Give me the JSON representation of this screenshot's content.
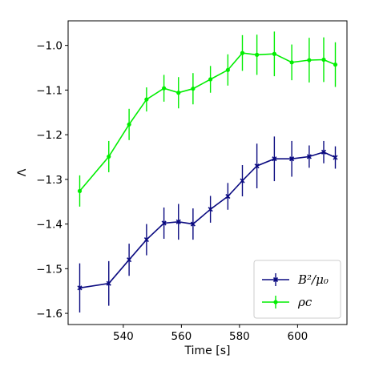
{
  "chart_data": {
    "type": "line",
    "xlabel": "Time [s]",
    "ylabel": "Λ",
    "xlim": [
      521,
      617
    ],
    "ylim": [
      -1.625,
      -0.945
    ],
    "xticks": [
      540,
      560,
      580,
      600
    ],
    "xtick_labels": [
      "540",
      "560",
      "580",
      "600"
    ],
    "yticks": [
      -1.6,
      -1.5,
      -1.4,
      -1.3,
      -1.2,
      -1.1,
      -1.0
    ],
    "ytick_labels": [
      "−1.6",
      "−1.5",
      "−1.4",
      "−1.3",
      "−1.2",
      "−1.1",
      "−1.0"
    ],
    "grid": false,
    "legend_position": "bottom-right",
    "x": [
      525,
      535,
      542,
      548,
      554,
      559,
      564,
      570,
      576,
      581,
      586,
      592,
      598,
      604,
      609,
      613
    ],
    "series": [
      {
        "name": "B²/μ₀",
        "color": "#0a0a80",
        "marker": "x",
        "values": [
          -1.543,
          -1.533,
          -1.48,
          -1.435,
          -1.398,
          -1.395,
          -1.4,
          -1.367,
          -1.338,
          -1.303,
          -1.27,
          -1.254,
          -1.254,
          -1.249,
          -1.239,
          -1.251
        ],
        "errors": [
          0.055,
          0.05,
          0.036,
          0.035,
          0.035,
          0.04,
          0.035,
          0.03,
          0.03,
          0.035,
          0.05,
          0.05,
          0.04,
          0.025,
          0.025,
          0.025
        ]
      },
      {
        "name": "ρc",
        "color": "#00ee00",
        "marker": "o",
        "values": [
          -1.326,
          -1.249,
          -1.177,
          -1.121,
          -1.096,
          -1.106,
          -1.097,
          -1.076,
          -1.055,
          -1.017,
          -1.021,
          -1.019,
          -1.038,
          -1.033,
          -1.032,
          -1.043
        ],
        "errors": [
          0.035,
          0.035,
          0.035,
          0.027,
          0.03,
          0.035,
          0.035,
          0.03,
          0.035,
          0.04,
          0.045,
          0.05,
          0.04,
          0.05,
          0.05,
          0.05
        ]
      }
    ]
  }
}
